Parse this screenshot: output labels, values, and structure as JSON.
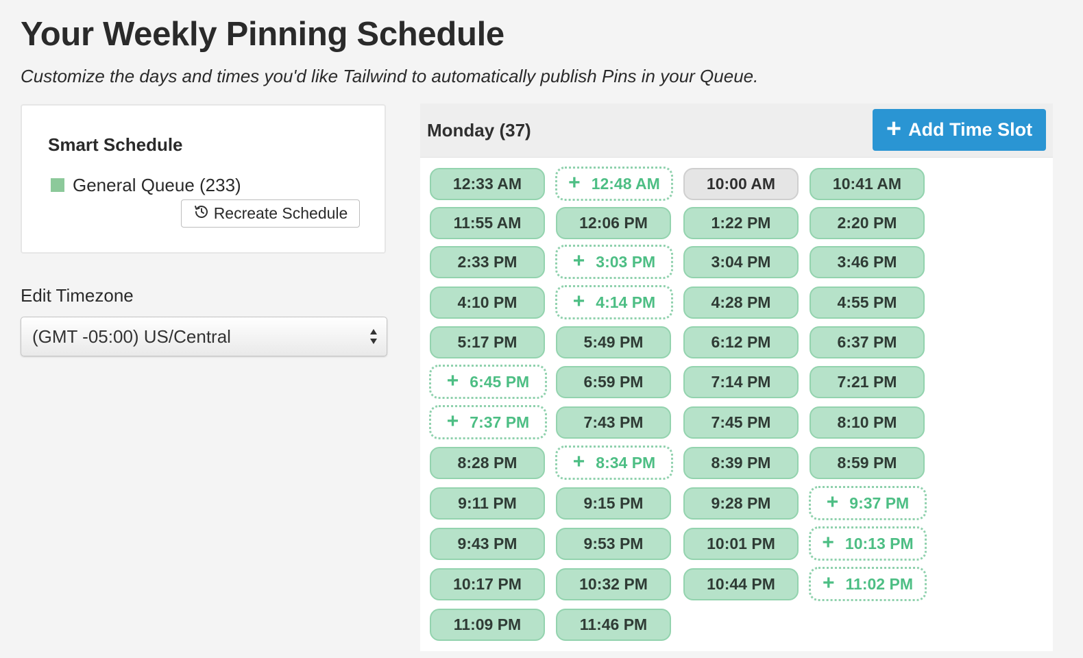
{
  "page": {
    "title": "Your Weekly Pinning Schedule",
    "subtitle": "Customize the days and times you'd like Tailwind to automatically publish Pins in your Queue."
  },
  "smart_schedule": {
    "title": "Smart Schedule",
    "legend_label": "General Queue (233)",
    "legend_color": "#8cc99a",
    "recreate_label": "Recreate Schedule",
    "recreate_icon": "history-icon"
  },
  "timezone": {
    "label": "Edit Timezone",
    "selected": "(GMT -05:00) US/Central"
  },
  "day": {
    "title": "Monday (37)",
    "add_label": "Add Time Slot",
    "add_color": "#2a95d3"
  },
  "slots": [
    {
      "time": "12:33 AM",
      "state": "filled"
    },
    {
      "time": "12:48 AM",
      "state": "empty"
    },
    {
      "time": "10:00 AM",
      "state": "gray"
    },
    {
      "time": "10:41 AM",
      "state": "filled"
    },
    {
      "time": "11:55 AM",
      "state": "filled"
    },
    {
      "time": "12:06 PM",
      "state": "filled"
    },
    {
      "time": "1:22 PM",
      "state": "filled"
    },
    {
      "time": "2:20 PM",
      "state": "filled"
    },
    {
      "time": "2:33 PM",
      "state": "filled"
    },
    {
      "time": "3:03 PM",
      "state": "empty"
    },
    {
      "time": "3:04 PM",
      "state": "filled"
    },
    {
      "time": "3:46 PM",
      "state": "filled"
    },
    {
      "time": "4:10 PM",
      "state": "filled"
    },
    {
      "time": "4:14 PM",
      "state": "empty"
    },
    {
      "time": "4:28 PM",
      "state": "filled"
    },
    {
      "time": "4:55 PM",
      "state": "filled"
    },
    {
      "time": "5:17 PM",
      "state": "filled"
    },
    {
      "time": "5:49 PM",
      "state": "filled"
    },
    {
      "time": "6:12 PM",
      "state": "filled"
    },
    {
      "time": "6:37 PM",
      "state": "filled"
    },
    {
      "time": "6:45 PM",
      "state": "empty"
    },
    {
      "time": "6:59 PM",
      "state": "filled"
    },
    {
      "time": "7:14 PM",
      "state": "filled"
    },
    {
      "time": "7:21 PM",
      "state": "filled"
    },
    {
      "time": "7:37 PM",
      "state": "empty"
    },
    {
      "time": "7:43 PM",
      "state": "filled"
    },
    {
      "time": "7:45 PM",
      "state": "filled"
    },
    {
      "time": "8:10 PM",
      "state": "filled"
    },
    {
      "time": "8:28 PM",
      "state": "filled"
    },
    {
      "time": "8:34 PM",
      "state": "empty"
    },
    {
      "time": "8:39 PM",
      "state": "filled"
    },
    {
      "time": "8:59 PM",
      "state": "filled"
    },
    {
      "time": "9:11 PM",
      "state": "filled"
    },
    {
      "time": "9:15 PM",
      "state": "filled"
    },
    {
      "time": "9:28 PM",
      "state": "filled"
    },
    {
      "time": "9:37 PM",
      "state": "empty"
    },
    {
      "time": "9:43 PM",
      "state": "filled"
    },
    {
      "time": "9:53 PM",
      "state": "filled"
    },
    {
      "time": "10:01 PM",
      "state": "filled"
    },
    {
      "time": "10:13 PM",
      "state": "empty"
    },
    {
      "time": "10:17 PM",
      "state": "filled"
    },
    {
      "time": "10:32 PM",
      "state": "filled"
    },
    {
      "time": "10:44 PM",
      "state": "filled"
    },
    {
      "time": "11:02 PM",
      "state": "empty"
    },
    {
      "time": "11:09 PM",
      "state": "filled"
    },
    {
      "time": "11:46 PM",
      "state": "filled"
    }
  ]
}
